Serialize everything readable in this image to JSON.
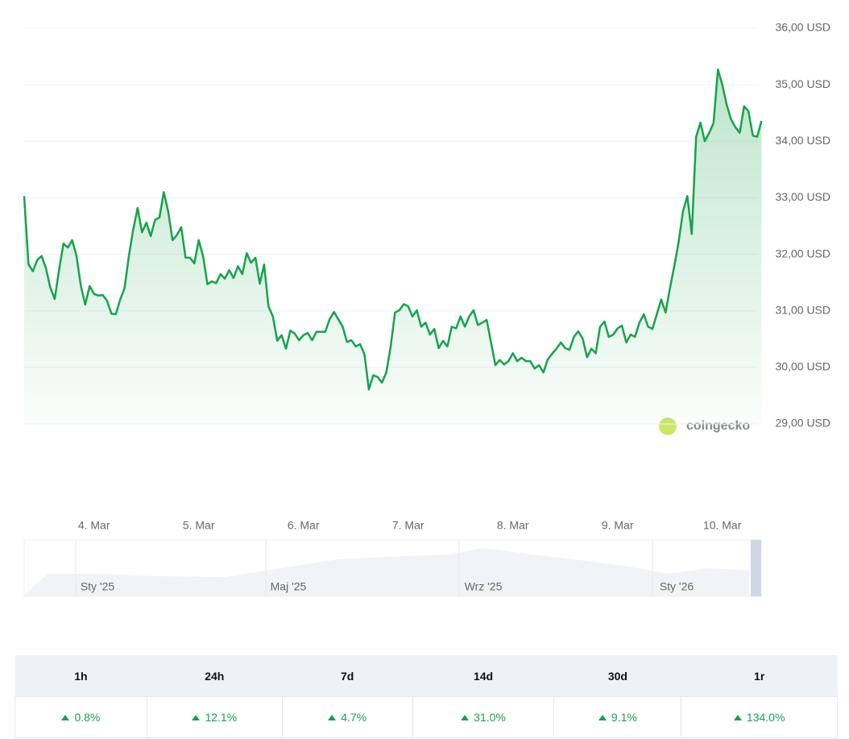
{
  "chart_data": {
    "type": "line",
    "color": "#16a34a",
    "values": [
      33.03,
      31.82,
      31.7,
      31.9,
      31.97,
      31.75,
      31.41,
      31.21,
      31.72,
      32.19,
      32.12,
      32.25,
      31.97,
      31.44,
      31.11,
      31.44,
      31.3,
      31.27,
      31.28,
      31.18,
      30.95,
      30.94,
      31.2,
      31.4,
      31.97,
      32.44,
      32.82,
      32.39,
      32.56,
      32.32,
      32.61,
      32.65,
      33.1,
      32.76,
      32.25,
      32.34,
      32.48,
      31.94,
      31.94,
      31.84,
      32.25,
      31.97,
      31.47,
      31.52,
      31.49,
      31.65,
      31.57,
      31.72,
      31.58,
      31.79,
      31.65,
      32.02,
      31.85,
      31.94,
      31.48,
      31.82,
      31.08,
      30.9,
      30.47,
      30.57,
      30.33,
      30.65,
      30.6,
      30.48,
      30.57,
      30.61,
      30.48,
      30.63,
      30.63,
      30.63,
      30.85,
      30.98,
      30.85,
      30.72,
      30.45,
      30.48,
      30.37,
      30.41,
      30.23,
      29.61,
      29.86,
      29.83,
      29.73,
      29.91,
      30.37,
      30.97,
      31.01,
      31.12,
      31.08,
      30.9,
      31.01,
      30.72,
      30.79,
      30.58,
      30.68,
      30.34,
      30.47,
      30.37,
      30.72,
      30.69,
      30.9,
      30.72,
      30.9,
      31.01,
      30.75,
      30.79,
      30.84,
      30.44,
      30.04,
      30.13,
      30.05,
      30.11,
      30.25,
      30.11,
      30.17,
      30.11,
      30.11,
      29.98,
      30.04,
      29.91,
      30.14,
      30.24,
      30.33,
      30.44,
      30.34,
      30.31,
      30.54,
      30.64,
      30.51,
      30.18,
      30.33,
      30.25,
      30.72,
      30.81,
      30.54,
      30.58,
      30.69,
      30.74,
      30.44,
      30.58,
      30.54,
      30.79,
      30.94,
      30.72,
      30.68,
      30.94,
      31.2,
      30.97,
      31.4,
      31.79,
      32.22,
      32.76,
      33.03,
      32.36,
      34.08,
      34.33,
      34.0,
      34.15,
      34.32,
      35.27,
      35.0,
      34.65,
      34.39,
      34.25,
      34.15,
      34.62,
      34.53,
      34.1,
      34.08,
      34.36
    ],
    "xlim": [
      0,
      168
    ],
    "xticks": [
      {
        "value": 16,
        "label": "4. Mar"
      },
      {
        "value": 40,
        "label": "5. Mar"
      },
      {
        "value": 64,
        "label": "6. Mar"
      },
      {
        "value": 88,
        "label": "7. Mar"
      },
      {
        "value": 112,
        "label": "8. Mar"
      },
      {
        "value": 136,
        "label": "9. Mar"
      },
      {
        "value": 160,
        "label": "10. Mar"
      }
    ],
    "ylim": [
      29,
      36
    ],
    "yticks": [
      {
        "value": 29,
        "label": "29,00 USD"
      },
      {
        "value": 30,
        "label": "30,00 USD"
      },
      {
        "value": 31,
        "label": "31,00 USD"
      },
      {
        "value": 32,
        "label": "32,00 USD"
      },
      {
        "value": 33,
        "label": "33,00 USD"
      },
      {
        "value": 34,
        "label": "34,00 USD"
      },
      {
        "value": 35,
        "label": "35,00 USD"
      },
      {
        "value": 36,
        "label": "36,00 USD"
      }
    ],
    "grid": true,
    "watermark": "coingecko",
    "navigator_labels": [
      "Sty '25",
      "Maj '25",
      "Wrz '25",
      "Sty '26"
    ]
  },
  "table": {
    "headers": [
      "1h",
      "24h",
      "7d",
      "14d",
      "30d",
      "1r"
    ],
    "values": [
      "0.8%",
      "12.1%",
      "4.7%",
      "31.0%",
      "9.1%",
      "134.0%"
    ]
  }
}
